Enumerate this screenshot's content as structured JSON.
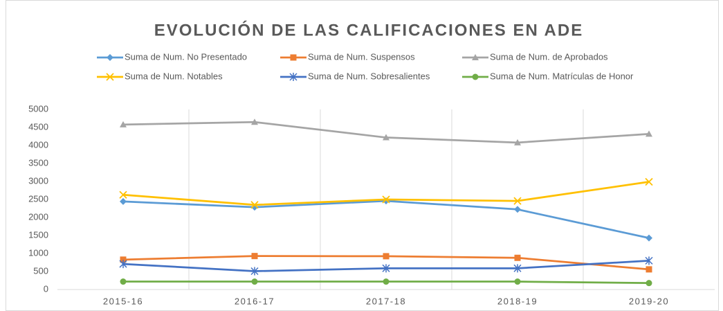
{
  "chart_data": {
    "type": "line",
    "title": "EVOLUCIÓN DE LAS CALIFICACIONES EN ADE",
    "categories": [
      "2015-16",
      "2016-17",
      "2017-18",
      "2018-19",
      "2019-20"
    ],
    "series": [
      {
        "name": "Suma de Num. No Presentado",
        "color": "#5b9bd5",
        "marker": "diamond",
        "values": [
          2445,
          2285,
          2460,
          2225,
          1430
        ]
      },
      {
        "name": "Suma de Num. Suspensos",
        "color": "#ed7d31",
        "marker": "square",
        "values": [
          830,
          930,
          925,
          880,
          560
        ]
      },
      {
        "name": "Suma de Num. de Aprobados",
        "color": "#a5a5a5",
        "marker": "triangle",
        "values": [
          4580,
          4650,
          4220,
          4080,
          4320
        ]
      },
      {
        "name": "Suma de Num. Notables",
        "color": "#ffc000",
        "marker": "x",
        "values": [
          2630,
          2350,
          2500,
          2460,
          2990
        ]
      },
      {
        "name": "Suma de Num. Sobresalientes",
        "color": "#4472c4",
        "marker": "asterisk",
        "values": [
          710,
          510,
          590,
          590,
          800
        ]
      },
      {
        "name": "Suma de Num. Matrículas de Honor",
        "color": "#70ad47",
        "marker": "circle",
        "values": [
          220,
          220,
          220,
          220,
          180
        ]
      }
    ],
    "ylim": [
      0,
      5000
    ],
    "yticks": [
      0,
      500,
      1000,
      1500,
      2000,
      2500,
      3000,
      3500,
      4000,
      4500,
      5000
    ],
    "grid": "vertical",
    "legend": "top"
  }
}
